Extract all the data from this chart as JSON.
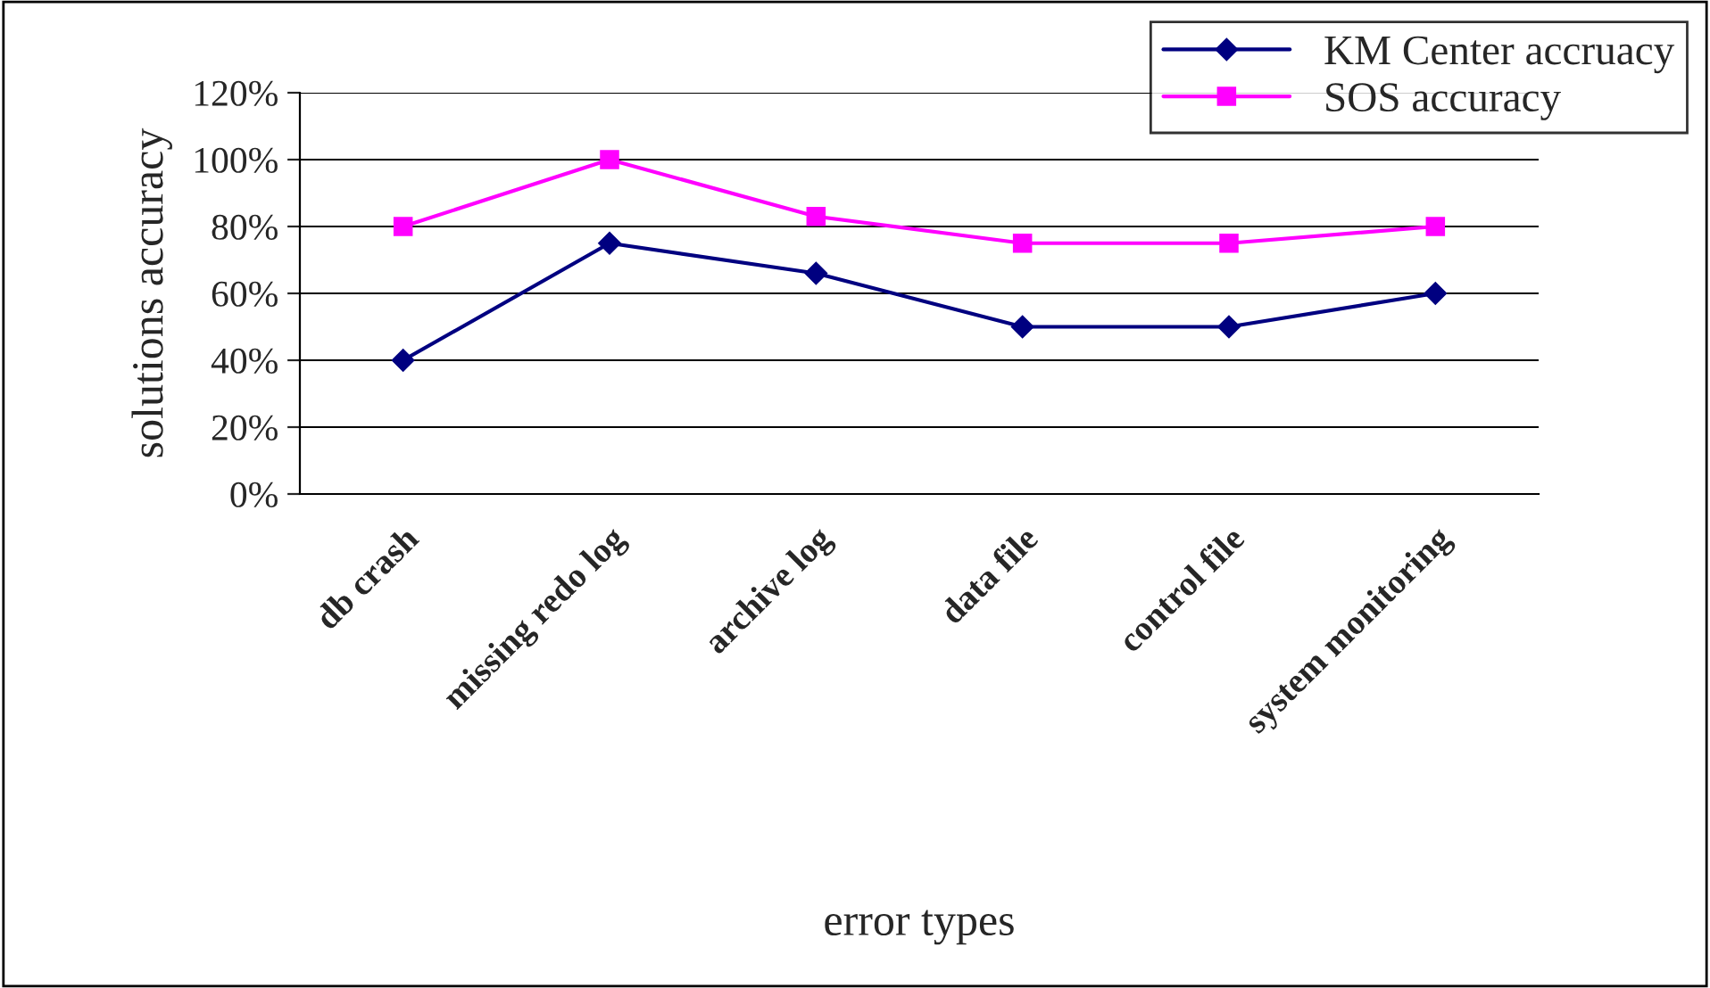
{
  "chart_data": {
    "type": "line",
    "xlabel": "error types",
    "ylabel": "solutions accuracy",
    "categories": [
      "db crash",
      "missing redo log",
      "archive log",
      "data file",
      "control file",
      "system monitoring"
    ],
    "series": [
      {
        "name": "KM Center accruacy",
        "color": "#000080",
        "marker": "diamond",
        "values": [
          40,
          75,
          66,
          50,
          50,
          60
        ]
      },
      {
        "name": "SOS accuracy",
        "color": "#ff00ff",
        "marker": "square",
        "values": [
          80,
          100,
          83,
          75,
          75,
          80
        ]
      }
    ],
    "ylim": [
      0,
      120
    ],
    "yticks": [
      {
        "value": 0,
        "label": "0%"
      },
      {
        "value": 20,
        "label": "20%"
      },
      {
        "value": 40,
        "label": "40%"
      },
      {
        "value": 60,
        "label": "60%"
      },
      {
        "value": 80,
        "label": "80%"
      },
      {
        "value": 100,
        "label": "100%"
      },
      {
        "value": 120,
        "label": "120%"
      }
    ],
    "grid": "y",
    "legend": "top right"
  }
}
